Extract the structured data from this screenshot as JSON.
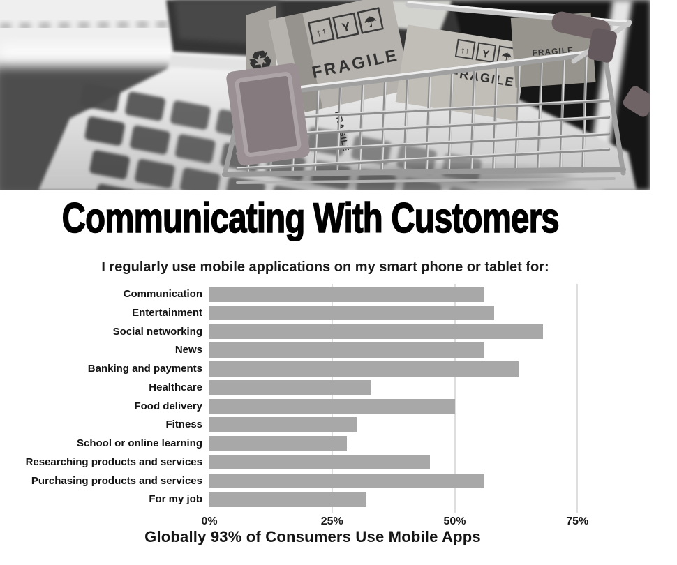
{
  "page": {
    "background": "#ffffff"
  },
  "hero": {
    "fragile_label": "FRAGILE",
    "recycle_glyph": "♻",
    "up_arrows_glyph": "↑↑",
    "glass_glyph": "Y",
    "umbrella_glyph": "☂"
  },
  "title": "Communicating With Customers",
  "subtitle": "I regularly use mobile applications on my smart phone or tablet for:",
  "chart_data": {
    "type": "bar",
    "orientation": "horizontal",
    "title": "I regularly use mobile applications on my smart phone or tablet for:",
    "categories": [
      "Communication",
      "Entertainment",
      "Social networking",
      "News",
      "Banking and payments",
      "Healthcare",
      "Food delivery",
      "Fitness",
      "School or online learning",
      "Researching products and services",
      "Purchasing products and services",
      "For my job"
    ],
    "values": [
      56,
      58,
      68,
      56,
      63,
      33,
      50,
      30,
      28,
      45,
      56,
      32
    ],
    "unit": "%",
    "x_ticks": [
      "0%",
      "25%",
      "50%",
      "75%"
    ],
    "xlim": [
      0,
      90
    ],
    "grid": true,
    "legend": false,
    "bar_color": "#a8a8a8",
    "grid_color": "#dedede"
  },
  "footer": "Globally 93% of Consumers Use Mobile Apps"
}
